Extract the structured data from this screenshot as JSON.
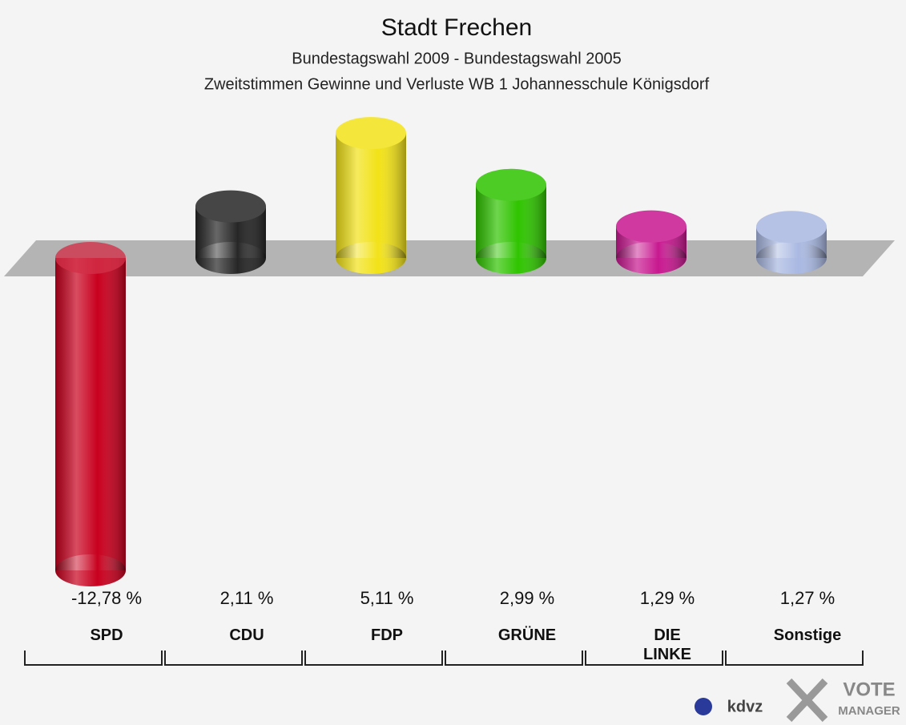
{
  "chart_data": {
    "type": "bar",
    "title": "Stadt Frechen",
    "subtitle": [
      "Bundestagswahl 2009 - Bundestagswahl 2005",
      "Zweitstimmen Gewinne und Verluste WB 1 Johannesschule Königsdorf"
    ],
    "categories": [
      "SPD",
      "CDU",
      "FDP",
      "GRÜNE",
      "DIE LINKE",
      "Sonstige"
    ],
    "values": [
      -12.78,
      2.11,
      5.11,
      2.99,
      1.29,
      1.27
    ],
    "value_labels": [
      "-12,78 %",
      "2,11 %",
      "5,11 %",
      "2,99 %",
      "1,29 %",
      "1,27 %"
    ],
    "colors": [
      "#c8001e",
      "#262626",
      "#f2e218",
      "#2fc400",
      "#c81890",
      "#a9b8e2"
    ],
    "ylim": [
      -13.6,
      5.9
    ],
    "annotations": [
      "kdvz",
      "VOTE",
      "MANAGER"
    ]
  }
}
